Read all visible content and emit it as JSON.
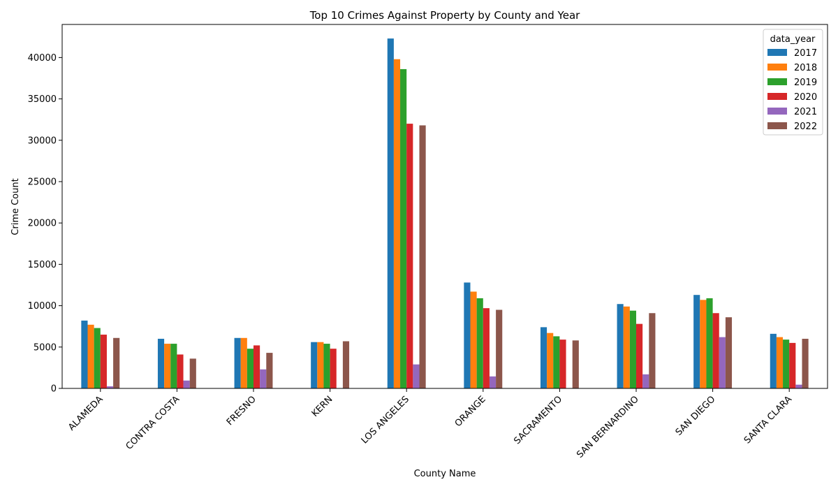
{
  "chart_data": {
    "type": "bar",
    "title": "Top 10 Crimes Against Property by County and Year",
    "xlabel": "County Name",
    "ylabel": "Crime Count",
    "ylim": [
      0,
      44000
    ],
    "yticks": [
      0,
      5000,
      10000,
      15000,
      20000,
      25000,
      30000,
      35000,
      40000
    ],
    "grid": false,
    "legend_title": "data_year",
    "legend_position": "top-right",
    "categories": [
      "ALAMEDA",
      "CONTRA COSTA",
      "FRESNO",
      "KERN",
      "LOS ANGELES",
      "ORANGE",
      "SACRAMENTO",
      "SAN BERNARDINO",
      "SAN DIEGO",
      "SANTA CLARA"
    ],
    "series": [
      {
        "name": "2017",
        "color": "#1f77b4",
        "values": [
          8200,
          6000,
          6100,
          5600,
          42300,
          12800,
          7400,
          10200,
          11300,
          6600
        ]
      },
      {
        "name": "2018",
        "color": "#ff7f0e",
        "values": [
          7700,
          5400,
          6100,
          5600,
          39800,
          11700,
          6700,
          9900,
          10700,
          6200
        ]
      },
      {
        "name": "2019",
        "color": "#2ca02c",
        "values": [
          7300,
          5400,
          4800,
          5400,
          38600,
          10900,
          6300,
          9400,
          10900,
          5900
        ]
      },
      {
        "name": "2020",
        "color": "#d62728",
        "values": [
          6500,
          4100,
          5200,
          4800,
          32000,
          9700,
          5900,
          7800,
          9100,
          5500
        ]
      },
      {
        "name": "2021",
        "color": "#9467bd",
        "values": [
          250,
          950,
          2300,
          0,
          2900,
          1450,
          0,
          1700,
          6200,
          450
        ]
      },
      {
        "name": "2022",
        "color": "#8c564b",
        "values": [
          6100,
          3600,
          4300,
          5700,
          31800,
          9500,
          5800,
          9100,
          8600,
          6000
        ]
      }
    ]
  }
}
